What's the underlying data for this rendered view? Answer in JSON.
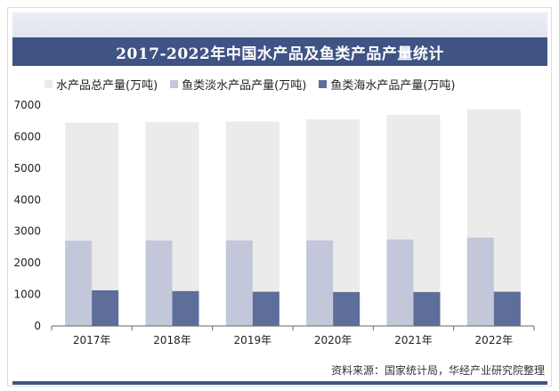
{
  "colors": {
    "title_bg": "#3f5384",
    "total": "#ebebeb",
    "freshwater": "#c2c8d9",
    "marine": "#5c6e99",
    "axis": "#666666"
  },
  "chart_data": {
    "type": "bar",
    "title": "2017-2022年中国水产品及鱼类产品产量统计",
    "categories": [
      "2017年",
      "2018年",
      "2019年",
      "2020年",
      "2021年",
      "2022年"
    ],
    "series": [
      {
        "name": "水产品总产量(万吨)",
        "values": [
          6445,
          6458,
          6480,
          6549,
          6690,
          6866
        ]
      },
      {
        "name": "鱼类淡水产品产量(万吨)",
        "values": [
          2702,
          2707,
          2710,
          2712,
          2740,
          2802
        ]
      },
      {
        "name": "鱼类海水产品产量(万吨)",
        "values": [
          1130,
          1105,
          1085,
          1075,
          1075,
          1085
        ]
      }
    ],
    "ylim": [
      0,
      7000
    ],
    "yticks": [
      0,
      1000,
      2000,
      3000,
      4000,
      5000,
      6000,
      7000
    ],
    "ylabel": "",
    "xlabel": "",
    "legend_position": "top",
    "grid": false
  },
  "source_text": "资料来源：国家统计局，华经产业研究院整理"
}
